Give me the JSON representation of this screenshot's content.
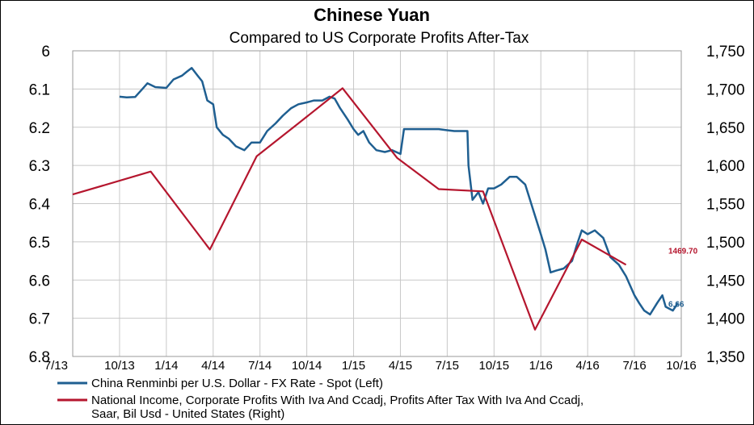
{
  "chart_data": {
    "type": "line",
    "title": "Chinese Yuan",
    "subtitle": "Compared to US Corporate Profits After-Tax",
    "x_tick_labels": [
      "7/13",
      "10/13",
      "1/14",
      "4/14",
      "7/14",
      "10/14",
      "1/15",
      "4/15",
      "7/15",
      "10/15",
      "1/16",
      "4/16",
      "7/16",
      "10/16"
    ],
    "left_axis": {
      "ticks": [
        "6",
        "6.1",
        "6.2",
        "6.3",
        "6.4",
        "6.5",
        "6.6",
        "6.7",
        "6.8"
      ],
      "range": [
        6.0,
        6.8
      ],
      "inverted": true
    },
    "right_axis": {
      "ticks": [
        "1,750",
        "1,700",
        "1,650",
        "1,600",
        "1,550",
        "1,500",
        "1,450",
        "1,400",
        "1,350"
      ],
      "range": [
        1350,
        1750
      ]
    },
    "grid": true,
    "legend_position": "bottom-left",
    "series": [
      {
        "name": "China Renminbi per U.S. Dollar - FX Rate - Spot  (Left)",
        "color": "#1f5f91",
        "axis": "left",
        "end_label": "6.66",
        "points": [
          [
            "2013-10-01",
            6.12
          ],
          [
            "2013-10-15",
            6.122
          ],
          [
            "2013-11-01",
            6.121
          ],
          [
            "2013-11-15",
            6.1
          ],
          [
            "2013-11-25",
            6.085
          ],
          [
            "2013-12-10",
            6.095
          ],
          [
            "2014-01-01",
            6.097
          ],
          [
            "2014-01-15",
            6.075
          ],
          [
            "2014-02-01",
            6.065
          ],
          [
            "2014-02-10",
            6.055
          ],
          [
            "2014-02-20",
            6.045
          ],
          [
            "2014-03-01",
            6.065
          ],
          [
            "2014-03-10",
            6.08
          ],
          [
            "2014-03-20",
            6.13
          ],
          [
            "2014-04-01",
            6.14
          ],
          [
            "2014-04-08",
            6.2
          ],
          [
            "2014-04-20",
            6.22
          ],
          [
            "2014-05-01",
            6.23
          ],
          [
            "2014-05-15",
            6.25
          ],
          [
            "2014-06-01",
            6.26
          ],
          [
            "2014-06-15",
            6.24
          ],
          [
            "2014-07-01",
            6.24
          ],
          [
            "2014-07-15",
            6.21
          ],
          [
            "2014-08-01",
            6.19
          ],
          [
            "2014-08-15",
            6.17
          ],
          [
            "2014-09-01",
            6.15
          ],
          [
            "2014-09-15",
            6.14
          ],
          [
            "2014-10-01",
            6.135
          ],
          [
            "2014-10-15",
            6.13
          ],
          [
            "2014-11-01",
            6.13
          ],
          [
            "2014-11-15",
            6.12
          ],
          [
            "2014-11-25",
            6.125
          ],
          [
            "2014-12-05",
            6.15
          ],
          [
            "2014-12-20",
            6.18
          ],
          [
            "2015-01-01",
            6.205
          ],
          [
            "2015-01-10",
            6.22
          ],
          [
            "2015-01-20",
            6.21
          ],
          [
            "2015-02-01",
            6.24
          ],
          [
            "2015-02-15",
            6.26
          ],
          [
            "2015-03-01",
            6.265
          ],
          [
            "2015-03-15",
            6.26
          ],
          [
            "2015-04-01",
            6.27
          ],
          [
            "2015-04-08",
            6.205
          ],
          [
            "2015-05-01",
            6.205
          ],
          [
            "2015-05-15",
            6.205
          ],
          [
            "2015-06-01",
            6.205
          ],
          [
            "2015-06-15",
            6.205
          ],
          [
            "2015-07-01",
            6.208
          ],
          [
            "2015-07-15",
            6.21
          ],
          [
            "2015-08-01",
            6.21
          ],
          [
            "2015-08-10",
            6.21
          ],
          [
            "2015-08-12",
            6.3
          ],
          [
            "2015-08-20",
            6.39
          ],
          [
            "2015-09-01",
            6.37
          ],
          [
            "2015-09-10",
            6.4
          ],
          [
            "2015-09-20",
            6.36
          ],
          [
            "2015-10-01",
            6.36
          ],
          [
            "2015-10-15",
            6.35
          ],
          [
            "2015-11-01",
            6.33
          ],
          [
            "2015-11-15",
            6.33
          ],
          [
            "2015-12-01",
            6.35
          ],
          [
            "2015-12-15",
            6.41
          ],
          [
            "2016-01-01",
            6.48
          ],
          [
            "2016-01-10",
            6.52
          ],
          [
            "2016-01-20",
            6.58
          ],
          [
            "2016-02-01",
            6.575
          ],
          [
            "2016-02-15",
            6.57
          ],
          [
            "2016-03-01",
            6.55
          ],
          [
            "2016-03-10",
            6.51
          ],
          [
            "2016-03-20",
            6.47
          ],
          [
            "2016-04-01",
            6.48
          ],
          [
            "2016-04-15",
            6.47
          ],
          [
            "2016-05-01",
            6.49
          ],
          [
            "2016-05-15",
            6.54
          ],
          [
            "2016-06-01",
            6.56
          ],
          [
            "2016-06-15",
            6.59
          ],
          [
            "2016-07-01",
            6.64
          ],
          [
            "2016-07-10",
            6.66
          ],
          [
            "2016-07-20",
            6.68
          ],
          [
            "2016-08-01",
            6.69
          ],
          [
            "2016-08-15",
            6.66
          ],
          [
            "2016-08-25",
            6.64
          ],
          [
            "2016-09-01",
            6.67
          ],
          [
            "2016-09-15",
            6.68
          ],
          [
            "2016-09-25",
            6.66
          ]
        ]
      },
      {
        "name": "National Income, Corporate Profits With Iva And Ccadj, Profits After Tax With Iva And Ccadj, Saar, Bil Usd - United States  (Right)",
        "color": "#b5162e",
        "axis": "right",
        "end_label": "1469.70",
        "points": [
          [
            "2013-07-01",
            1562
          ],
          [
            "2013-12-01",
            1592
          ],
          [
            "2014-03-25",
            1490
          ],
          [
            "2014-06-25",
            1612
          ],
          [
            "2014-09-15",
            1655
          ],
          [
            "2014-12-10",
            1701
          ],
          [
            "2015-03-25",
            1610
          ],
          [
            "2015-06-15",
            1569
          ],
          [
            "2015-09-10",
            1566
          ],
          [
            "2015-12-20",
            1385
          ],
          [
            "2016-03-20",
            1503
          ],
          [
            "2016-06-15",
            1470
          ]
        ]
      }
    ]
  }
}
